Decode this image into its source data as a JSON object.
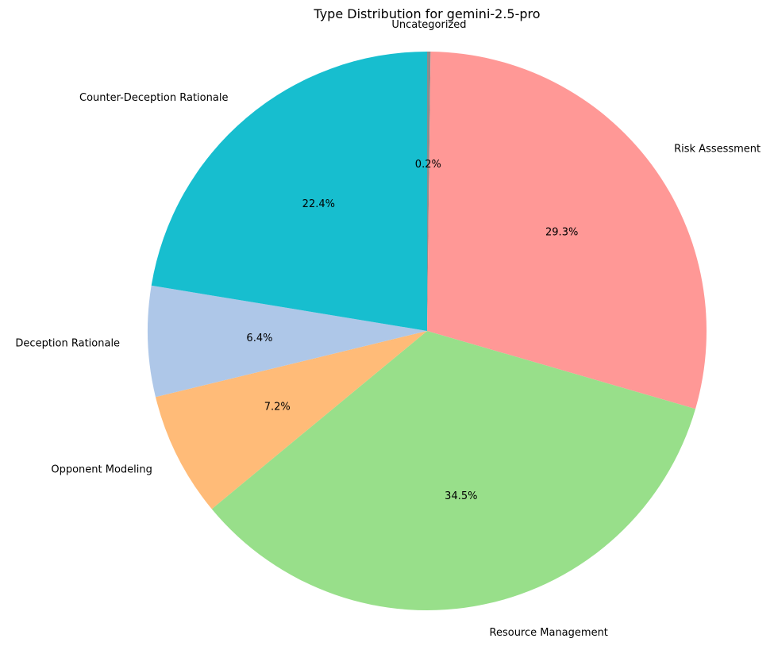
{
  "chart_data": {
    "type": "pie",
    "title": "Type Distribution for gemini-2.5-pro",
    "slices": [
      {
        "label": "Uncategorized",
        "value": 0.2,
        "pct_label": "0.2%",
        "color": "#8c8c8c"
      },
      {
        "label": "Risk Assessment",
        "value": 29.3,
        "pct_label": "29.3%",
        "color": "#ff9896"
      },
      {
        "label": "Resource Management",
        "value": 34.5,
        "pct_label": "34.5%",
        "color": "#98df8a"
      },
      {
        "label": "Opponent Modeling",
        "value": 7.2,
        "pct_label": "7.2%",
        "color": "#ffbb78"
      },
      {
        "label": "Deception Rationale",
        "value": 6.4,
        "pct_label": "6.4%",
        "color": "#aec7e8"
      },
      {
        "label": "Counter-Deception Rationale",
        "value": 22.4,
        "pct_label": "22.4%",
        "color": "#17becf"
      }
    ],
    "start_angle_deg": 90,
    "direction": "clockwise"
  }
}
